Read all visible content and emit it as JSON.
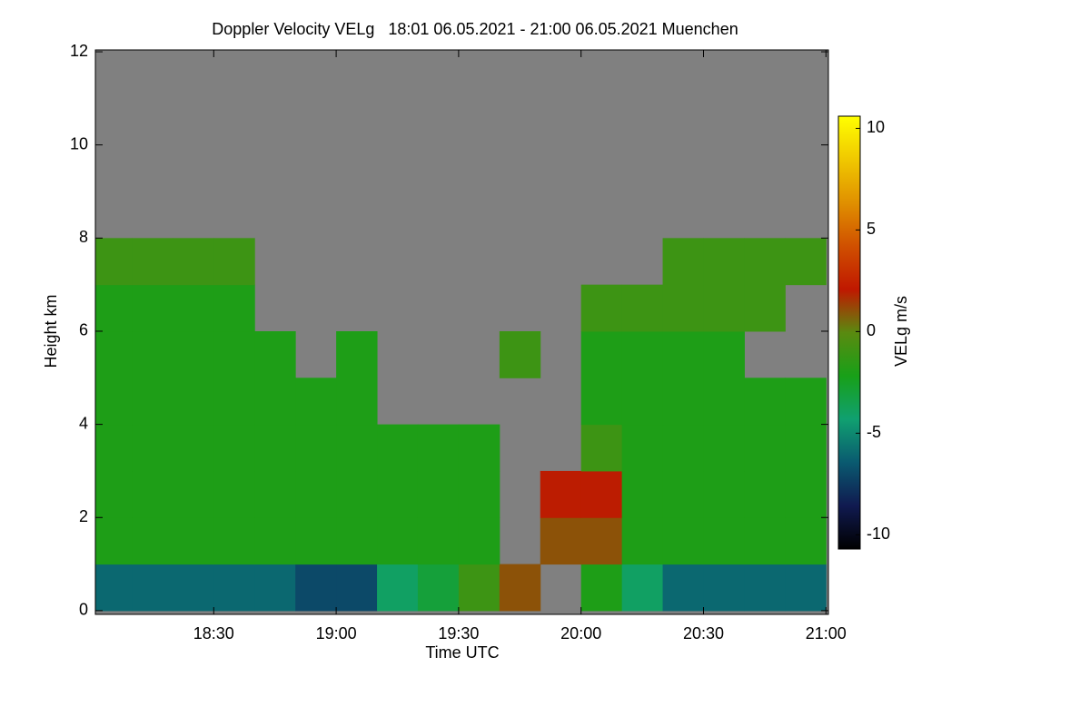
{
  "chart_data": {
    "type": "heatmap",
    "title": "Doppler Velocity VELg   18:01 06.05.2021 - 21:00 06.05.2021 Muenchen",
    "x_label": "Time UTC",
    "y_label": "Height km",
    "colorbar_label": "VELg m/s",
    "x": [
      18.0167,
      18.1667,
      18.3333,
      18.5,
      18.6667,
      18.8333,
      19,
      19.1667,
      19.3333,
      19.5,
      19.6667,
      19.8333,
      20,
      20.1667,
      20.3333,
      20.5,
      20.6667,
      20.8333,
      21
    ],
    "y": [
      0,
      1,
      2,
      3,
      4,
      5,
      6,
      7,
      8,
      9,
      10,
      11,
      12
    ],
    "values": [
      [
        -6,
        -6,
        -6,
        -6,
        -6,
        -7,
        -7,
        -4,
        -3,
        -1,
        1,
        null,
        -2,
        -4,
        -6,
        -6,
        -6,
        -6
      ],
      [
        -2,
        -2,
        -2,
        -2,
        -2,
        -2,
        -2,
        -2,
        -2,
        -2,
        null,
        1,
        1,
        -2,
        -2,
        -2,
        -2,
        -2
      ],
      [
        -2,
        -2,
        -2,
        -2,
        -2,
        -2,
        -2,
        -2,
        -2,
        -2,
        null,
        2,
        2,
        -2,
        -2,
        -2,
        -2,
        -2
      ],
      [
        -2,
        -2,
        -2,
        -2,
        -2,
        -2,
        -2,
        -2,
        -2,
        -2,
        null,
        null,
        -1,
        -2,
        -2,
        -2,
        -2,
        -2
      ],
      [
        -2,
        -2,
        -2,
        -2,
        -2,
        -2,
        -2,
        null,
        null,
        null,
        null,
        null,
        -2,
        -2,
        -2,
        -2,
        -2,
        -2
      ],
      [
        -2,
        -2,
        -2,
        -2,
        -2,
        null,
        -2,
        null,
        null,
        null,
        -1,
        null,
        -2,
        -2,
        -2,
        -2,
        null,
        null
      ],
      [
        -2,
        -2,
        -2,
        -2,
        null,
        null,
        null,
        null,
        null,
        null,
        null,
        null,
        -1,
        -1,
        -1,
        -1,
        -1,
        null
      ],
      [
        -1,
        -1,
        -1,
        -1,
        null,
        null,
        null,
        null,
        null,
        null,
        null,
        null,
        null,
        null,
        -1,
        -1,
        -1,
        -1
      ],
      [
        null,
        null,
        null,
        null,
        null,
        null,
        null,
        null,
        null,
        null,
        null,
        null,
        null,
        null,
        null,
        null,
        null,
        null
      ],
      [
        null,
        null,
        null,
        null,
        null,
        null,
        null,
        null,
        null,
        null,
        null,
        null,
        null,
        null,
        null,
        null,
        null,
        null
      ],
      [
        null,
        null,
        null,
        null,
        null,
        null,
        null,
        null,
        null,
        null,
        null,
        null,
        null,
        null,
        null,
        null,
        null,
        null
      ],
      [
        null,
        null,
        null,
        null,
        null,
        null,
        null,
        null,
        null,
        null,
        null,
        null,
        null,
        null,
        null,
        null,
        null,
        null
      ]
    ],
    "xlim": [
      18.0167,
      21.01
    ],
    "xticks": [
      {
        "value": 18.5,
        "label": "18:30"
      },
      {
        "value": 19,
        "label": "19:00"
      },
      {
        "value": 19.5,
        "label": "19:30"
      },
      {
        "value": 20,
        "label": "20:00"
      },
      {
        "value": 20.5,
        "label": "20:30"
      },
      {
        "value": 21,
        "label": "21:00"
      }
    ],
    "ylim": [
      -0.08,
      12.04
    ],
    "yticks": [
      0,
      2,
      4,
      6,
      8,
      10,
      12
    ],
    "zlim": [
      -10.7,
      10.6
    ],
    "zticks": [
      -10,
      -5,
      0,
      5,
      10
    ],
    "missing_color": "#808080",
    "colormap": [
      "#000000",
      "#101a50",
      "#0a5a70",
      "#10a070",
      "#18a018",
      "#5a8a10",
      "#c01800",
      "#d05000",
      "#e09000",
      "#f0c800",
      "#ffff00"
    ]
  }
}
